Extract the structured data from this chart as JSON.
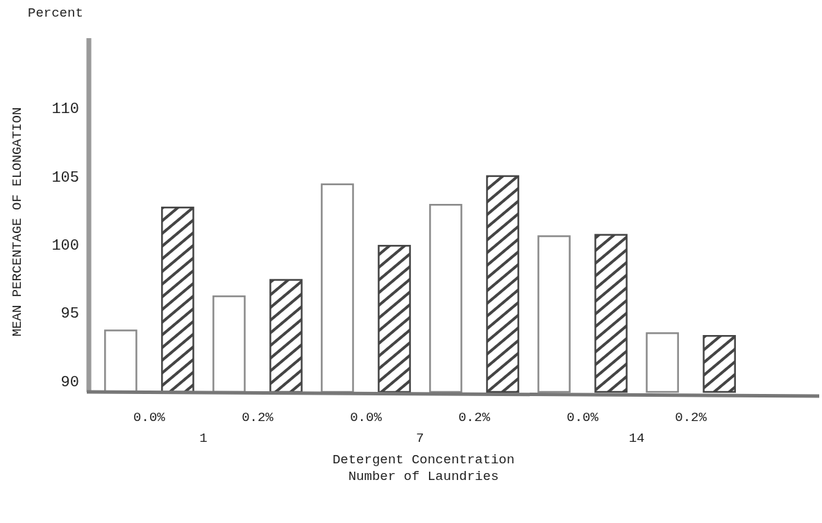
{
  "chart_data": {
    "type": "bar",
    "xlabel": "Detergent Concentration\nNumber of Laundries",
    "ylabel": "MEAN PERCENTAGE OF ELONGATION",
    "categories": [
      "0.0%",
      "0.2%",
      "0.0%",
      "0.2%",
      "0.0%",
      "0.2%"
    ],
    "series": [
      {
        "color": "#ffffff",
        "values": [
          93.7,
          96.2,
          104.4,
          102.9,
          100.6,
          93.5
        ]
      },
      {
        "color": "#444444",
        "values": [
          102.7,
          97.4,
          99.9,
          105.0,
          100.7,
          93.3
        ]
      }
    ],
    "ylim": [
      89.2,
      115.1
    ],
    "yticks": [
      90,
      95,
      100,
      105,
      110
    ],
    "annotations": [
      "Percent",
      "1",
      "7",
      "14"
    ],
    "grid": false
  }
}
